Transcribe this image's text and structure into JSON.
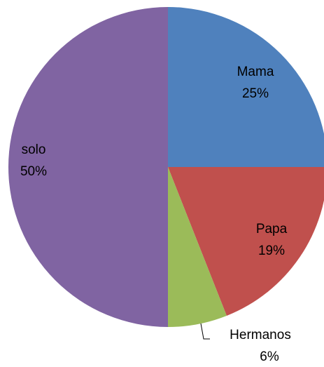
{
  "chart_data": {
    "type": "pie",
    "categories": [
      "Mama",
      "Papa",
      "Hermanos",
      "solo"
    ],
    "values": [
      25,
      19,
      6,
      50
    ],
    "value_labels": [
      "25%",
      "19%",
      "6%",
      "50%"
    ],
    "colors": [
      "#4f81bd",
      "#c0504d",
      "#9bbb59",
      "#8064a2"
    ]
  }
}
